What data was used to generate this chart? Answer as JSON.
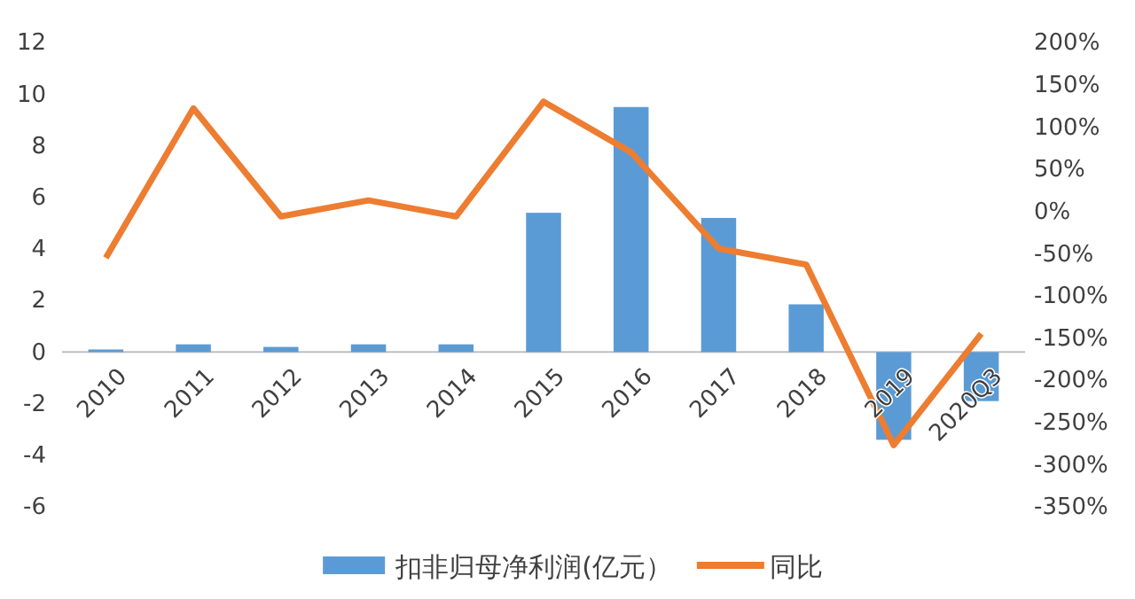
{
  "chart_data": {
    "type": "bar",
    "categories": [
      "2010",
      "2011",
      "2012",
      "2013",
      "2014",
      "2015",
      "2016",
      "2017",
      "2018",
      "2019",
      "2020Q3"
    ],
    "series": [
      {
        "name": "扣非归母净利润(亿元）",
        "color": "#5b9bd5",
        "values": [
          0.1,
          0.3,
          0.2,
          0.3,
          0.3,
          5.4,
          9.5,
          5.2,
          1.85,
          -3.4,
          -1.9
        ]
      },
      {
        "name": "同比",
        "type": "line",
        "axis": "y2",
        "color": "#ed7d31",
        "values": [
          -55,
          122,
          -6,
          13,
          -6,
          130,
          70,
          -44,
          -63,
          -277,
          -145
        ]
      }
    ],
    "ylim": [
      -6,
      12
    ],
    "yticks": [
      -6,
      -4,
      -2,
      0,
      2,
      4,
      6,
      8,
      10,
      12
    ],
    "y2lim": [
      -350,
      200
    ],
    "y2ticks": [
      {
        "value": -350,
        "label": "-350%"
      },
      {
        "value": -300,
        "label": "-300%"
      },
      {
        "value": -250,
        "label": "-250%"
      },
      {
        "value": -200,
        "label": "-200%"
      },
      {
        "value": -150,
        "label": "-150%"
      },
      {
        "value": -100,
        "label": "-100%"
      },
      {
        "value": -50,
        "label": "-50%"
      },
      {
        "value": 0,
        "label": "0%"
      },
      {
        "value": 50,
        "label": "50%"
      },
      {
        "value": 100,
        "label": "100%"
      },
      {
        "value": 150,
        "label": "150%"
      },
      {
        "value": 200,
        "label": "200%"
      }
    ],
    "grid": false,
    "legend": "bottom",
    "marker": "none",
    "line_style": "solid"
  }
}
